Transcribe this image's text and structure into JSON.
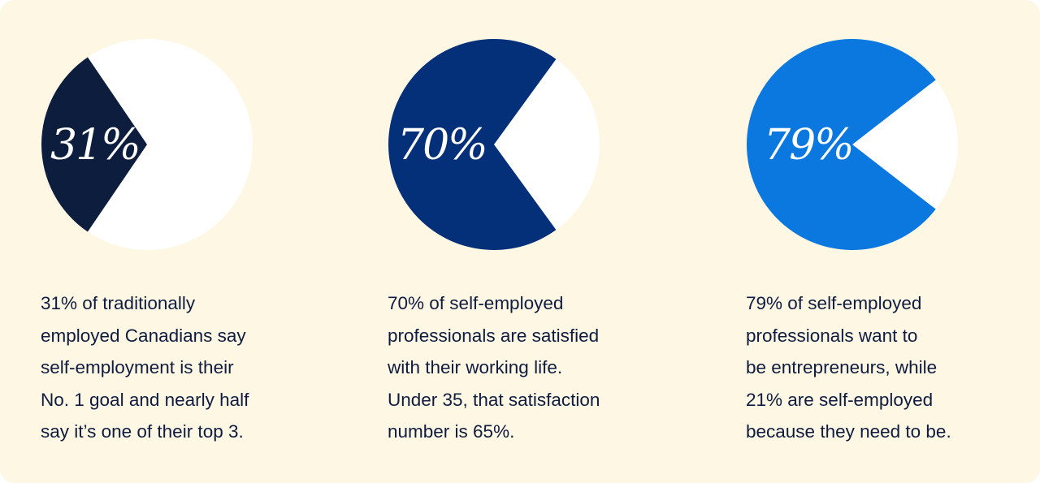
{
  "chart_data": [
    {
      "type": "pie",
      "slices": [
        {
          "label": "31%",
          "value": 31,
          "color": "#0c1d3e"
        },
        {
          "value": 69,
          "color": "#ffffff"
        }
      ],
      "caption_lines": [
        "31% of traditionally",
        "employed Canadians say",
        "self-employment is their",
        "No. 1 goal and nearly half",
        "say it’s one of their top 3."
      ]
    },
    {
      "type": "pie",
      "slices": [
        {
          "label": "70%",
          "value": 70,
          "color": "#04307a"
        },
        {
          "value": 30,
          "color": "#ffffff"
        }
      ],
      "caption_lines": [
        "70% of self-employed",
        "professionals are satisfied",
        "with their working life.",
        "Under 35, that satisfaction",
        "number is 65%."
      ]
    },
    {
      "type": "pie",
      "slices": [
        {
          "label": "79%",
          "value": 79,
          "color": "#0b78e0"
        },
        {
          "value": 21,
          "color": "#ffffff"
        }
      ],
      "caption_lines": [
        "79% of self-employed",
        "professionals want to",
        "be entrepreneurs, while",
        "21% are self-employed",
        "because they need to be."
      ]
    }
  ]
}
